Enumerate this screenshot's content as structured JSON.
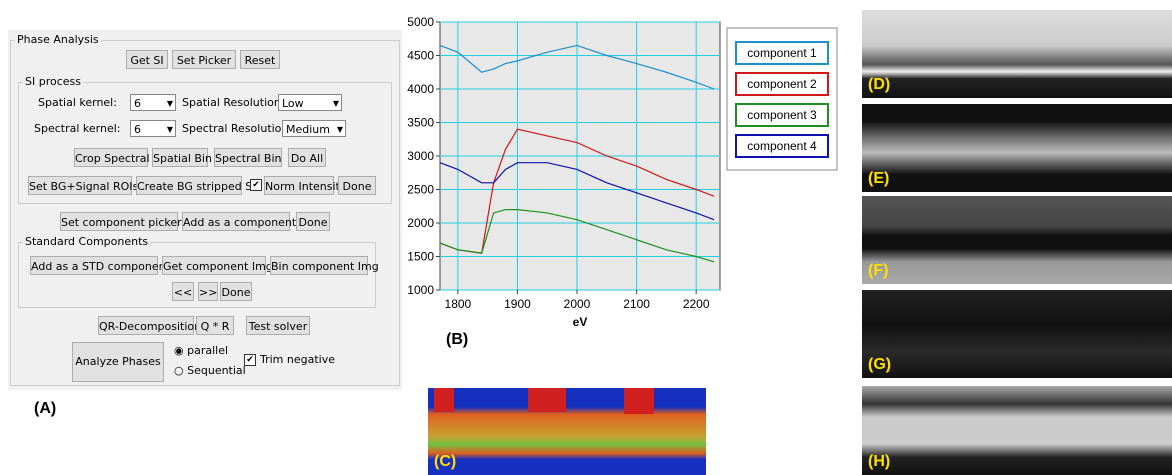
{
  "panel": {
    "title": "Phase Analysis",
    "top_buttons": [
      "Get SI",
      "Set Picker",
      "Reset"
    ],
    "si_process": {
      "title": "SI process",
      "spatial_kernel_label": "Spatial kernel:",
      "spatial_kernel_value": "6",
      "spatial_resolution_label": "Spatial Resolution:",
      "spatial_resolution_value": "Low",
      "spectral_kernel_label": "Spectral kernel:",
      "spectral_kernel_value": "6",
      "spectral_resolution_label": "Spectral Resolution:",
      "spectral_resolution_value": "Medium",
      "buttons_row1": [
        "Crop Spectral",
        "Spatial Bin",
        "Spectral Bin",
        "Do All"
      ],
      "buttons_row2": [
        "Set BG+Signal ROIs",
        "Create BG stripped SI"
      ],
      "checkbox": "Norm Intensity",
      "done": "Done"
    },
    "component_buttons": [
      "Set component picker",
      "Add as a component",
      "Done"
    ],
    "standard": {
      "title": "Standard Components",
      "buttons": [
        "Add as a STD component",
        "Get component Img",
        "Bin component Img"
      ],
      "nav": [
        "<<",
        ">>",
        "Done"
      ]
    },
    "solver_buttons": [
      "QR-Decomposition",
      "Q * R",
      "Test solver"
    ],
    "analyze": "Analyze Phases",
    "radios": [
      "parallel",
      "Sequential"
    ],
    "trim": "Trim negative",
    "label": "(A)"
  },
  "chart_data": {
    "type": "line",
    "x_label": "eV",
    "panel_label": "(B)",
    "x": [
      1770,
      1800,
      1840,
      1860,
      1880,
      1900,
      1950,
      2000,
      2050,
      2100,
      2150,
      2200,
      2230
    ],
    "series": [
      {
        "name": "component 1",
        "color": "#1e8fd0",
        "values": [
          4650,
          4550,
          4250,
          4300,
          4380,
          4420,
          4550,
          4650,
          4500,
          4380,
          4250,
          4100,
          4000
        ]
      },
      {
        "name": "component 2",
        "color": "#d01818",
        "values": [
          1700,
          1600,
          1550,
          2600,
          3100,
          3400,
          3300,
          3200,
          3000,
          2850,
          2650,
          2500,
          2400
        ]
      },
      {
        "name": "component 3",
        "color": "#1e9020",
        "values": [
          1700,
          1600,
          1550,
          2150,
          2200,
          2200,
          2150,
          2050,
          1900,
          1750,
          1600,
          1500,
          1420
        ]
      },
      {
        "name": "component 4",
        "color": "#1010b0",
        "values": [
          2900,
          2800,
          2600,
          2600,
          2800,
          2900,
          2900,
          2800,
          2600,
          2450,
          2300,
          2150,
          2050
        ]
      }
    ],
    "xlim": [
      1770,
      2240
    ],
    "ylim": [
      1000,
      5000
    ],
    "xticks": [
      1800,
      1900,
      2000,
      2100,
      2200
    ],
    "yticks": [
      1000,
      1500,
      2000,
      2500,
      3000,
      3500,
      4000,
      4500,
      5000
    ],
    "grid": true
  },
  "images": {
    "c": "(C)",
    "d": "(D)",
    "e": "(E)",
    "f": "(F)",
    "g": "(G)",
    "h": "(H)"
  }
}
